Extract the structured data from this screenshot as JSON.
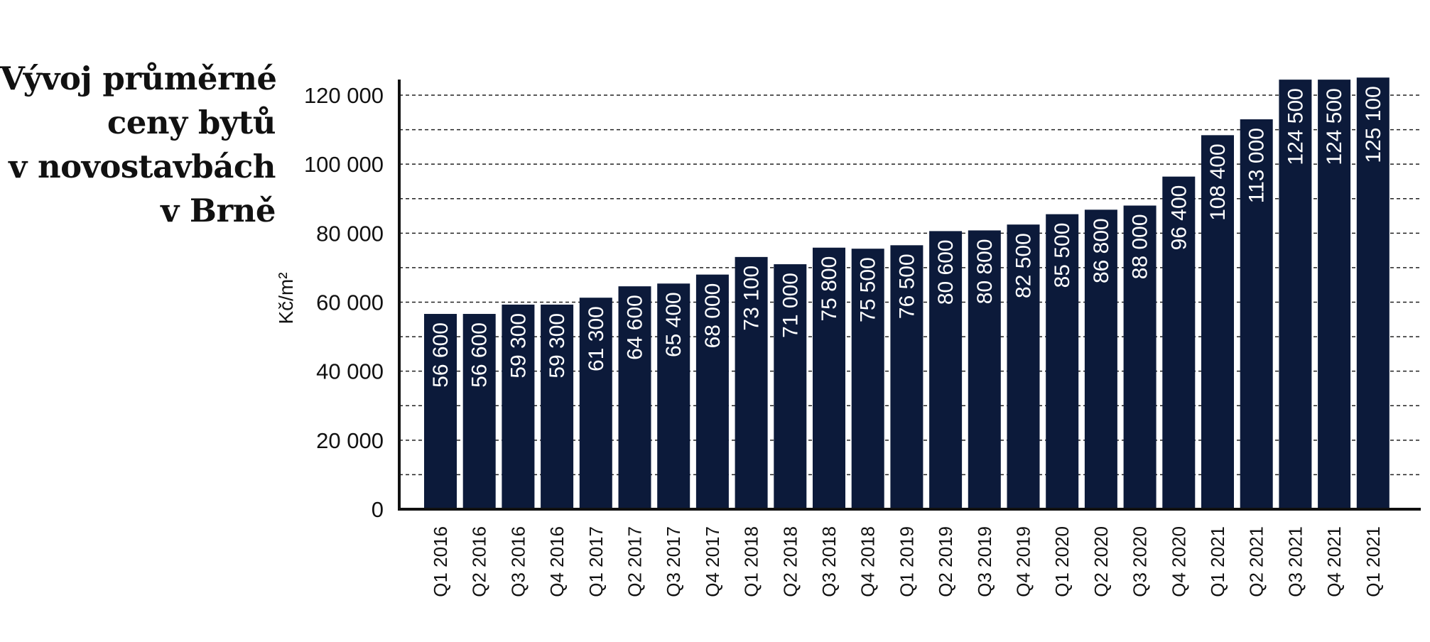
{
  "title_lines": [
    "Vývoj průměrné",
    "ceny bytů",
    "v novostavbách",
    "v Brně"
  ],
  "colors": {
    "bar": "#0c1a3a",
    "bar_label": "#ffffff",
    "grid": "#222222",
    "axis": "#111111"
  },
  "chart_data": {
    "type": "bar",
    "title": "Vývoj průměrné ceny bytů v novostavbách v Brně",
    "ylabel": "Kč/m²",
    "xlabel": "",
    "ylim": [
      0,
      125100
    ],
    "yticks": [
      0,
      20000,
      40000,
      60000,
      80000,
      100000,
      120000
    ],
    "ytick_labels": [
      "0",
      "20 000",
      "40 000",
      "60 000",
      "80 000",
      "100 000",
      "120 000"
    ],
    "grid": "dashed horizontal every 10 000",
    "categories": [
      "Q1 2016",
      "Q2 2016",
      "Q3 2016",
      "Q4 2016",
      "Q1 2017",
      "Q2 2017",
      "Q3 2017",
      "Q4 2017",
      "Q1 2018",
      "Q2 2018",
      "Q3 2018",
      "Q4 2018",
      "Q1 2019",
      "Q2 2019",
      "Q3 2019",
      "Q4 2019",
      "Q1 2020",
      "Q2 2020",
      "Q3 2020",
      "Q4 2020",
      "Q1 2021",
      "Q2 2021",
      "Q3 2021",
      "Q4 2021",
      "Q1 2021"
    ],
    "values": [
      56600,
      56600,
      59300,
      59300,
      61300,
      64600,
      65400,
      68000,
      73100,
      71000,
      75800,
      75500,
      76500,
      80600,
      80800,
      82500,
      85500,
      86800,
      88000,
      96400,
      108400,
      113000,
      124500,
      124500,
      125100
    ],
    "value_labels": [
      "56 600",
      "56 600",
      "59 300",
      "59 300",
      "61 300",
      "64 600",
      "65 400",
      "68 000",
      "73 100",
      "71 000",
      "75 800",
      "75 500",
      "76 500",
      "80 600",
      "80 800",
      "82 500",
      "85 500",
      "86 800",
      "88 000",
      "96 400",
      "108 400",
      "113 000",
      "124 500",
      "124 500",
      "125 100"
    ]
  }
}
